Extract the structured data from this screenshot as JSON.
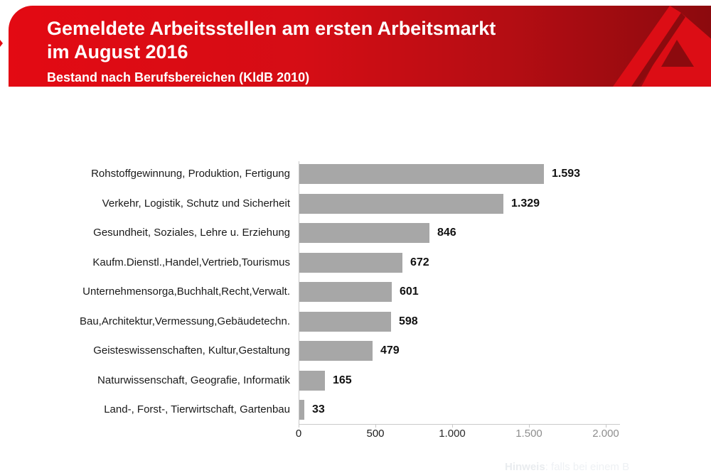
{
  "header": {
    "title_line1": "Gemeldete Arbeitsstellen am ersten Arbeitsmarkt",
    "title_line2": "im August 2016",
    "subtitle": "Bestand nach Berufsbereichen (KldB 2010)",
    "logo_icon": "bundesagentur-fuer-arbeit-a-logo",
    "colors": {
      "banner_red": "#e30a13",
      "banner_dark_red": "#8c0a0e",
      "logo_red": "#dc0d15",
      "text": "#ffffff"
    }
  },
  "chart_data": {
    "type": "bar",
    "orientation": "horizontal",
    "title": "Gemeldete Arbeitsstellen am ersten Arbeitsmarkt im August 2016",
    "subtitle": "Bestand nach Berufsbereichen (KldB 2010)",
    "categories": [
      "Rohstoffgewinnung, Produktion, Fertigung",
      "Verkehr, Logistik, Schutz und Sicherheit",
      "Gesundheit, Soziales, Lehre u. Erziehung",
      "Kaufm.Dienstl.,Handel,Vertrieb,Tourismus",
      "Unternehmensorga,Buchhalt,Recht,Verwalt.",
      "Bau,Architektur,Vermessung,Gebäudetechn.",
      "Geisteswissenschaften, Kultur,Gestaltung",
      "Naturwissenschaft, Geografie, Informatik",
      "Land-, Forst-, Tierwirtschaft, Gartenbau"
    ],
    "values": [
      1593,
      1329,
      846,
      672,
      601,
      598,
      479,
      165,
      33
    ],
    "value_labels": [
      "1.593",
      "1.329",
      "846",
      "672",
      "601",
      "598",
      "479",
      "165",
      "33"
    ],
    "xlabel": "",
    "ylabel": "",
    "xlim": [
      0,
      2000
    ],
    "grid": false,
    "legend": null,
    "bar_color": "#a7a7a7",
    "axis_color": "#c9c9c9",
    "xticks": [
      {
        "label": "0",
        "value": 0,
        "color": "#1c1c1c"
      },
      {
        "label": "500",
        "value": 500,
        "color": "#1c1c1c"
      },
      {
        "label": "1.000",
        "value": 1000,
        "color": "#2b2b2b"
      },
      {
        "label": "1.500",
        "value": 1500,
        "color": "#8e8e8e"
      },
      {
        "label": "2.000",
        "value": 2000,
        "color": "#8e8e8e"
      }
    ]
  },
  "footer": {
    "note_label": "Hinweis",
    "note_rest": ": falls bei einem B"
  }
}
